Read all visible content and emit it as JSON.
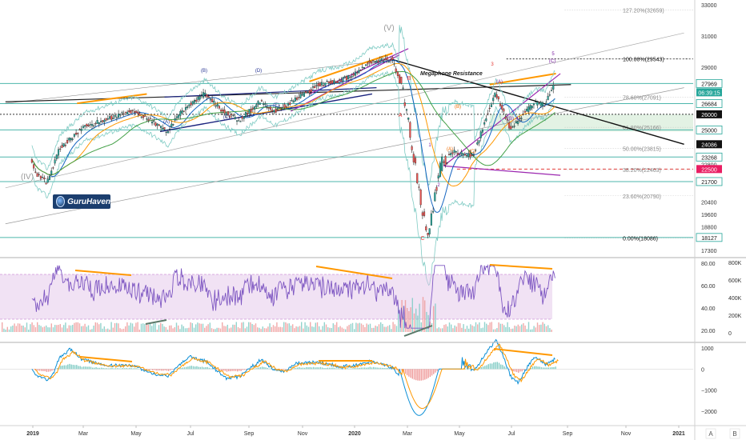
{
  "colors": {
    "price": "#1e1e2a",
    "bull": "#26a69a",
    "bear": "#ef5350",
    "horizontal": "#4db6ac",
    "dotted": "#555555",
    "orange": "#ff9800",
    "purple": "#9c27b0",
    "blue": "#1565c0",
    "navy": "#1a237e",
    "rsi": "#7e57c2",
    "rsi_band": "#e1bee7",
    "macd": "#0c8fd6",
    "signal": "#ff9800",
    "wave_red": "#e53935",
    "wave_purple": "#7b1fa2",
    "wave_navy": "#283593",
    "wave_orange": "#ef6c00",
    "fib": "#888888"
  },
  "logo": {
    "text": "GuruHaven",
    "icon": "globe-icon",
    "bg": "#1b3e6e"
  },
  "chart_data": [
    {
      "type": "candlestick",
      "title": "",
      "x_ticks": [
        "2019",
        "Mar",
        "May",
        "Jul",
        "Sep",
        "Nov",
        "2020",
        "Mar",
        "May",
        "Jul",
        "Sep",
        "Nov",
        "2021"
      ],
      "y_ticks": [
        33000,
        31000,
        29000,
        27969,
        26684,
        26000,
        25000,
        24086,
        23268,
        22800,
        22500,
        21700,
        20400,
        19600,
        18800,
        18127,
        17300
      ],
      "ylim": [
        17000,
        33300
      ],
      "price_path": [
        [
          "2018-12-31",
          23000
        ],
        [
          "2019-01-04",
          22300
        ],
        [
          "2019-01-18",
          21600
        ],
        [
          "2019-02-01",
          23800
        ],
        [
          "2019-03-01",
          25200
        ],
        [
          "2019-04-01",
          25800
        ],
        [
          "2019-04-25",
          26200
        ],
        [
          "2019-05-10",
          25800
        ],
        [
          "2019-06-03",
          24900
        ],
        [
          "2019-06-21",
          26300
        ],
        [
          "2019-07-15",
          27300
        ],
        [
          "2019-08-05",
          26200
        ],
        [
          "2019-08-23",
          25600
        ],
        [
          "2019-09-16",
          26800
        ],
        [
          "2019-10-03",
          26200
        ],
        [
          "2019-10-28",
          27000
        ],
        [
          "2019-11-22",
          27900
        ],
        [
          "2019-12-13",
          28100
        ],
        [
          "2020-01-03",
          28600
        ],
        [
          "2020-01-17",
          29300
        ],
        [
          "2020-02-12",
          29543
        ],
        [
          "2020-02-24",
          27900
        ],
        [
          "2020-03-02",
          25400
        ],
        [
          "2020-03-12",
          21800
        ],
        [
          "2020-03-23",
          18086
        ],
        [
          "2020-04-01",
          20800
        ],
        [
          "2020-04-08",
          22800
        ],
        [
          "2020-04-21",
          23600
        ],
        [
          "2020-05-14",
          23300
        ],
        [
          "2020-06-08",
          27400
        ],
        [
          "2020-06-26",
          25000
        ],
        [
          "2020-07-10",
          26000
        ],
        [
          "2020-07-22",
          26700
        ],
        [
          "2020-08-03",
          26600
        ],
        [
          "2020-08-14",
          27969
        ]
      ],
      "levels": [
        {
          "value": 29543,
          "label": "29543",
          "style": "dotted"
        },
        {
          "value": 27969,
          "label": "27969",
          "style": "current"
        },
        {
          "value": 26684,
          "label": "26684",
          "style": "teal"
        },
        {
          "value": 26000,
          "label": "26000",
          "style": "dotted-black"
        },
        {
          "value": 25000,
          "label": "25000",
          "style": "teal"
        },
        {
          "value": 24086,
          "label": "24086",
          "style": "navy"
        },
        {
          "value": 23268,
          "label": "23268",
          "style": "teal"
        },
        {
          "value": 22500,
          "label": "22500",
          "style": "red-dashed"
        },
        {
          "value": 21700,
          "label": "21700",
          "style": "teal"
        },
        {
          "value": 18127,
          "label": "18127",
          "style": "teal"
        }
      ],
      "countdown": "06:39:15",
      "fib_levels": [
        {
          "label": "127.20%(32659)",
          "value": 32659
        },
        {
          "label": "100.00%(29543)",
          "value": 29543
        },
        {
          "label": "78.60%(27091)",
          "value": 27091
        },
        {
          "label": "61.80%(25166)",
          "value": 25166
        },
        {
          "label": "50.00%(23815)",
          "value": 23815
        },
        {
          "label": "38.20%(22463)",
          "value": 22463
        },
        {
          "label": "23.60%(20790)",
          "value": 20790
        },
        {
          "label": "0.00%(18086)",
          "value": 18086
        }
      ],
      "annotations": [
        "Megaphone Resistance"
      ],
      "waves": [
        {
          "label": "(IV)",
          "group": "gray"
        },
        {
          "label": "(V)",
          "group": "gray"
        },
        {
          "label": "(A)",
          "group": "navy"
        },
        {
          "label": "(B)",
          "group": "navy"
        },
        {
          "label": "(C)",
          "group": "navy"
        },
        {
          "label": "(D)",
          "group": "navy"
        },
        {
          "label": "(E)",
          "group": "navy"
        },
        {
          "label": "A",
          "group": "red"
        },
        {
          "label": "B",
          "group": "red"
        },
        {
          "label": "C",
          "group": "red"
        },
        {
          "label": "1",
          "group": "purple"
        },
        {
          "label": "2",
          "group": "purple"
        },
        {
          "label": "3",
          "group": "red"
        },
        {
          "label": "4",
          "group": "purple"
        },
        {
          "label": "5",
          "group": "purple"
        },
        {
          "label": "(A)",
          "group": "purple"
        },
        {
          "label": "(B)",
          "group": "purple"
        },
        {
          "label": "(C)",
          "group": "purple"
        },
        {
          "label": "(A)",
          "group": "orange"
        },
        {
          "label": "(B)",
          "group": "orange"
        },
        {
          "label": "(C)",
          "group": "orange"
        }
      ]
    },
    {
      "type": "line",
      "title": "",
      "y_ticks": [
        80.0,
        60.0,
        40.0,
        20.0
      ],
      "y_tick_labels": [
        "80.00",
        "60.00",
        "40.00",
        "20.00"
      ],
      "volume_ticks": [
        "800K",
        "600K",
        "400K",
        "200K",
        "0"
      ],
      "band": [
        30,
        70
      ],
      "ylim": [
        15,
        85
      ]
    },
    {
      "type": "line",
      "title": "",
      "y_ticks": [
        1000,
        0,
        -1000,
        -2000
      ],
      "y_tick_labels": [
        "1000",
        "0",
        "−1000",
        "−2000"
      ],
      "ylim": [
        -2400,
        1200
      ]
    }
  ],
  "axis_buttons": [
    "A",
    "B"
  ]
}
